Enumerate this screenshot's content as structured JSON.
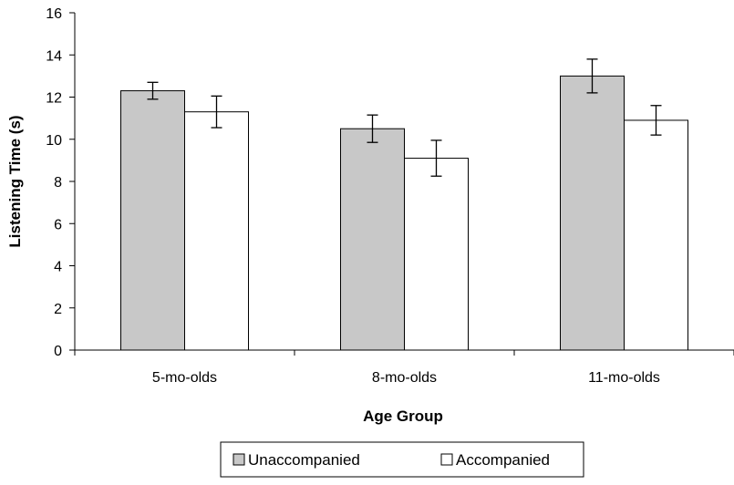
{
  "chart_data": {
    "type": "bar",
    "title": "",
    "xlabel": "Age Group",
    "ylabel": "Listening Time (s)",
    "ylim": [
      0,
      16
    ],
    "yticks": [
      "0",
      "2",
      "4",
      "6",
      "8",
      "10",
      "12",
      "14",
      "16"
    ],
    "categories": [
      "5-mo-olds",
      "8-mo-olds",
      "11-mo-olds"
    ],
    "series": [
      {
        "name": "Unaccompanied",
        "color": "#c8c8c8",
        "values": [
          12.3,
          10.5,
          13.0
        ],
        "error": [
          0.4,
          0.65,
          0.8
        ]
      },
      {
        "name": "Accompanied",
        "color": "#ffffff",
        "values": [
          11.3,
          9.1,
          10.9
        ],
        "error": [
          0.75,
          0.85,
          0.7
        ]
      }
    ],
    "grid": false,
    "legend": "bottom-center"
  }
}
